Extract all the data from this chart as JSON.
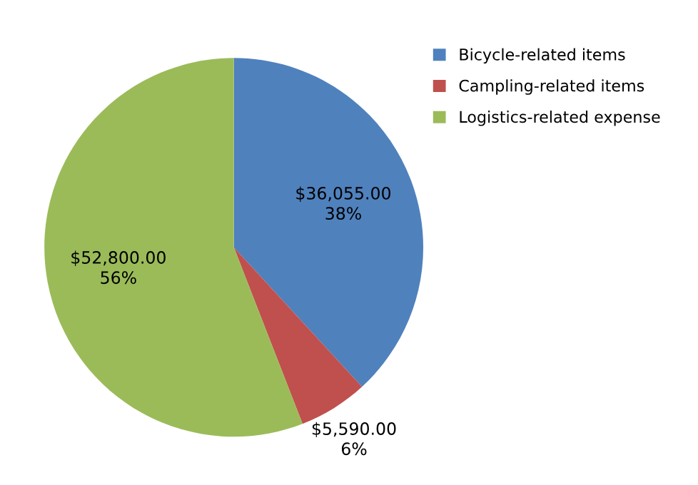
{
  "chart_data": {
    "type": "pie",
    "categories": [
      "Bicycle-related items",
      "Campling-related items",
      "Logistics-related expense"
    ],
    "values": [
      36055,
      5590,
      52800
    ],
    "colors": [
      "#4f81bd",
      "#c0504d",
      "#9bbb59"
    ],
    "value_labels": [
      "$36,055.00\n38%",
      "$5,590.00\n6%",
      "$52,800.00\n56%"
    ],
    "legend": "right"
  }
}
